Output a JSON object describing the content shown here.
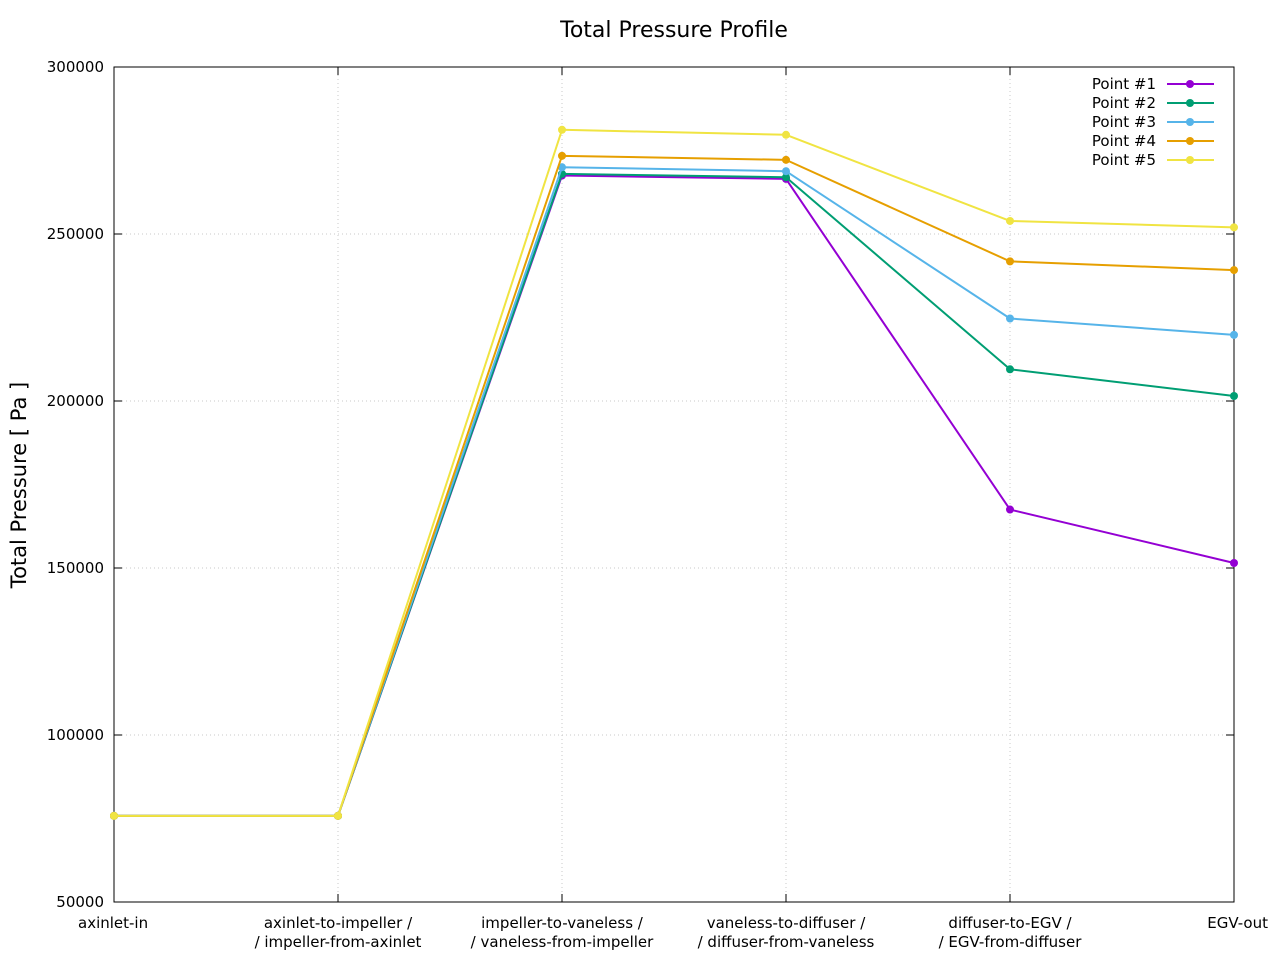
{
  "chart_data": {
    "type": "line",
    "title": "Total Pressure Profile",
    "xlabel": "",
    "ylabel": "Total Pressure [ Pa ]",
    "ylim": [
      50000,
      300000
    ],
    "yticks": [
      50000,
      100000,
      150000,
      200000,
      250000,
      300000
    ],
    "ytick_labels": [
      "50000",
      "100000",
      "150000",
      "200000",
      "250000",
      "300000"
    ],
    "categories": [
      [
        "axinlet-in"
      ],
      [
        "axinlet-to-impeller /",
        "/ impeller-from-axinlet"
      ],
      [
        "impeller-to-vaneless /",
        "/ vaneless-from-impeller"
      ],
      [
        "vaneless-to-diffuser /",
        "/ diffuser-from-vaneless"
      ],
      [
        "diffuser-to-EGV /",
        "/ EGV-from-diffuser"
      ],
      [
        "EGV-out"
      ]
    ],
    "grid": true,
    "legend_position": "top-right",
    "series": [
      {
        "name": "Point #1",
        "color": "#9400d3",
        "values": [
          75800,
          75800,
          267500,
          266500,
          167500,
          151500
        ]
      },
      {
        "name": "Point #2",
        "color": "#009e73",
        "values": [
          75800,
          75800,
          268000,
          267000,
          209500,
          201500
        ]
      },
      {
        "name": "Point #3",
        "color": "#56b4e9",
        "values": [
          75800,
          75800,
          270000,
          268800,
          224700,
          219800
        ]
      },
      {
        "name": "Point #4",
        "color": "#e69f00",
        "values": [
          75800,
          75800,
          273400,
          272200,
          241800,
          239200
        ]
      },
      {
        "name": "Point #5",
        "color": "#f0e442",
        "values": [
          75800,
          75800,
          281200,
          279700,
          253900,
          252000
        ]
      }
    ]
  }
}
